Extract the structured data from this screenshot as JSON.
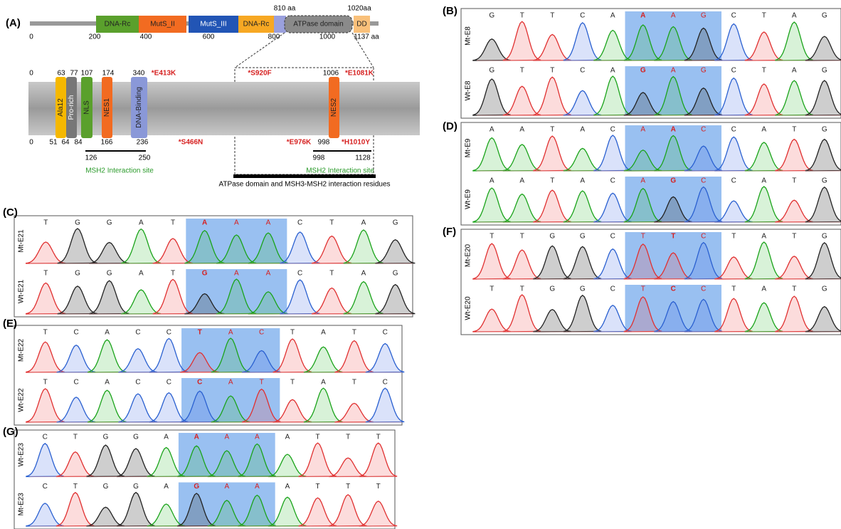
{
  "panel_a": {
    "label": "(A)",
    "domains": [
      "DNA-Rc",
      "MutS_II",
      "MutS_III",
      "DNA-Rc",
      "ATPase domain",
      "DD"
    ],
    "scale": [
      0,
      200,
      400,
      600,
      800,
      1000,
      "1137 aa"
    ],
    "zoom_ends": [
      "810 aa",
      "1020aa"
    ],
    "segments": [
      "Ala12",
      "Pro-rich",
      "NLS",
      "NES1",
      "DNA-Binding",
      "NES2"
    ],
    "top_numbers": [
      0,
      63,
      77,
      107,
      174,
      340,
      1006
    ],
    "bottom_numbers": [
      0,
      51,
      64,
      84,
      166,
      236,
      998
    ],
    "mutations": [
      "*E413K",
      "*S920F",
      "*E1081K",
      "*S466N",
      "*E976K",
      "*H1010Y"
    ],
    "interaction_sites": [
      {
        "start": 126,
        "end": 250,
        "label": "MSH2 Interaction site"
      },
      {
        "start": 998,
        "end": 1128,
        "label": "MSH2 Interaction site"
      }
    ],
    "atpase_note": "ATPase domain and MSH3-MSH2 interaction residues"
  },
  "chromatograms": [
    {
      "label": "(B)",
      "tracks": [
        {
          "name": "Mt-E8",
          "bases": [
            "G",
            "T",
            "T",
            "C",
            "A",
            "A",
            "A",
            "G",
            "C",
            "T",
            "A",
            "G"
          ]
        },
        {
          "name": "Wt-E8",
          "bases": [
            "G",
            "T",
            "T",
            "C",
            "A",
            "G",
            "A",
            "G",
            "C",
            "T",
            "A",
            "G"
          ]
        }
      ]
    },
    {
      "label": "(D)",
      "tracks": [
        {
          "name": "Mt-E9",
          "bases": [
            "A",
            "A",
            "T",
            "A",
            "C",
            "A",
            "A",
            "C",
            "C",
            "A",
            "T",
            "G"
          ]
        },
        {
          "name": "Wt-E9",
          "bases": [
            "A",
            "A",
            "T",
            "A",
            "C",
            "A",
            "G",
            "C",
            "C",
            "A",
            "T",
            "G"
          ]
        }
      ]
    },
    {
      "label": "(F)",
      "tracks": [
        {
          "name": "Mt-E20",
          "bases": [
            "T",
            "T",
            "G",
            "G",
            "C",
            "T",
            "T",
            "C",
            "T",
            "A",
            "T",
            "G"
          ]
        },
        {
          "name": "Wt-E20",
          "bases": [
            "T",
            "T",
            "G",
            "G",
            "C",
            "T",
            "C",
            "C",
            "T",
            "A",
            "T",
            "G"
          ]
        }
      ]
    },
    {
      "label": "(C)",
      "tracks": [
        {
          "name": "Mt-E21",
          "bases": [
            "T",
            "G",
            "G",
            "A",
            "T",
            "A",
            "A",
            "A",
            "C",
            "T",
            "A",
            "G"
          ]
        },
        {
          "name": "Wt-E21",
          "bases": [
            "T",
            "G",
            "G",
            "A",
            "T",
            "G",
            "A",
            "A",
            "C",
            "T",
            "A",
            "G"
          ]
        }
      ]
    },
    {
      "label": "(E)",
      "tracks": [
        {
          "name": "Mt-E22",
          "bases": [
            "T",
            "C",
            "A",
            "C",
            "C",
            "T",
            "A",
            "C",
            "T",
            "A",
            "T",
            "C"
          ]
        },
        {
          "name": "Wt-E22",
          "bases": [
            "T",
            "C",
            "A",
            "C",
            "C",
            "C",
            "A",
            "T",
            "T",
            "A",
            "T",
            "C"
          ]
        }
      ]
    },
    {
      "label": "(G)",
      "tracks": [
        {
          "name": "Wt-E23",
          "bases": [
            "C",
            "T",
            "G",
            "G",
            "A",
            "A",
            "A",
            "A",
            "A",
            "T",
            "T",
            "T"
          ]
        },
        {
          "name": "Mt-E23",
          "bases": [
            "C",
            "T",
            "G",
            "G",
            "A",
            "G",
            "A",
            "A",
            "A",
            "T",
            "T",
            "T"
          ]
        }
      ]
    }
  ]
}
